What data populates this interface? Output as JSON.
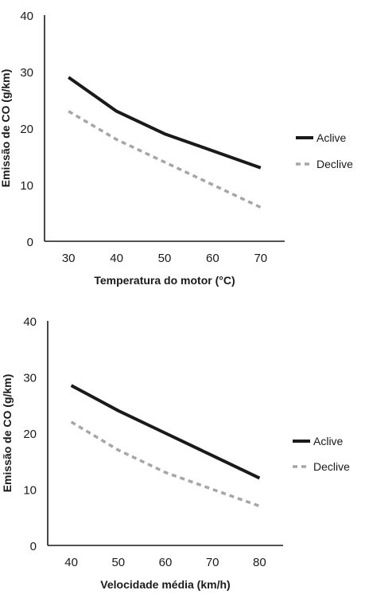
{
  "chart_data": [
    {
      "type": "line",
      "xlabel": "Temperatura do motor (°C)",
      "ylabel": "Emissão de CO (g/km)",
      "x": [
        30,
        40,
        50,
        60,
        70
      ],
      "xlim": [
        25,
        75
      ],
      "ylim": [
        0,
        40
      ],
      "yticks": [
        0,
        10,
        20,
        30,
        40
      ],
      "grid": false,
      "legend_position": "right",
      "series": [
        {
          "name": "Aclive",
          "values": [
            29,
            23,
            19,
            16,
            13
          ],
          "color": "#1a1a1a",
          "style": "solid"
        },
        {
          "name": "Declive",
          "values": [
            23,
            18,
            14,
            10,
            6
          ],
          "color": "#a6a6a6",
          "style": "dashed"
        }
      ]
    },
    {
      "type": "line",
      "xlabel": "Velocidade média (km/h)",
      "ylabel": "Emissão de CO (g/km)",
      "x": [
        40,
        50,
        60,
        70,
        80
      ],
      "xlim": [
        35,
        85
      ],
      "ylim": [
        0,
        40
      ],
      "yticks": [
        0,
        10,
        20,
        30,
        40
      ],
      "grid": false,
      "legend_position": "right",
      "series": [
        {
          "name": "Aclive",
          "values": [
            28.5,
            24,
            20,
            16,
            12
          ],
          "color": "#1a1a1a",
          "style": "solid"
        },
        {
          "name": "Declive",
          "values": [
            22,
            17,
            13,
            10,
            7
          ],
          "color": "#a6a6a6",
          "style": "dashed"
        }
      ]
    }
  ]
}
